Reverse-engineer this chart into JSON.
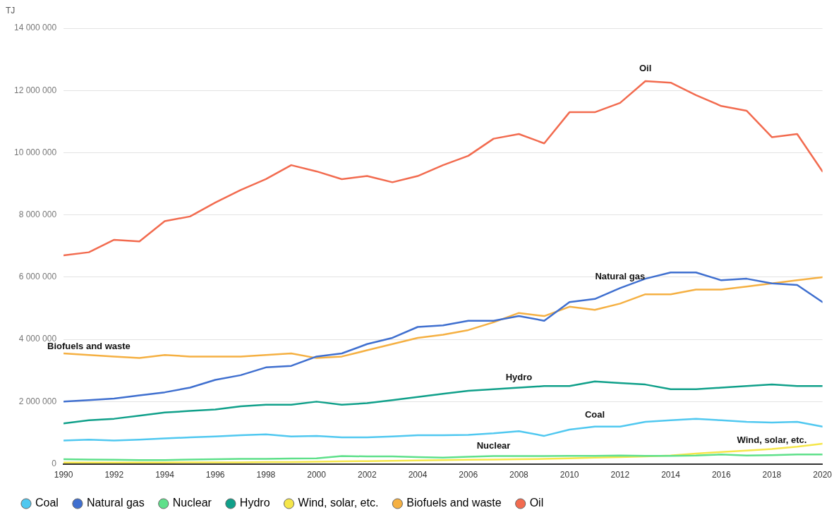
{
  "chart_data": {
    "type": "line",
    "ylabel": "TJ",
    "x": [
      1990,
      1991,
      1992,
      1993,
      1994,
      1995,
      1996,
      1997,
      1998,
      1999,
      2000,
      2001,
      2002,
      2003,
      2004,
      2005,
      2006,
      2007,
      2008,
      2009,
      2010,
      2011,
      2012,
      2013,
      2014,
      2015,
      2016,
      2017,
      2018,
      2019,
      2020
    ],
    "series": [
      {
        "name": "Coal",
        "color": "#50c8f0",
        "values": [
          750000,
          780000,
          750000,
          780000,
          820000,
          850000,
          880000,
          920000,
          950000,
          880000,
          900000,
          850000,
          850000,
          880000,
          920000,
          920000,
          930000,
          980000,
          1050000,
          900000,
          1100000,
          1200000,
          1200000,
          1350000,
          1400000,
          1450000,
          1400000,
          1350000,
          1330000,
          1350000,
          1200000
        ]
      },
      {
        "name": "Natural gas",
        "color": "#3f6fcf",
        "values": [
          2000000,
          2050000,
          2100000,
          2200000,
          2300000,
          2450000,
          2700000,
          2850000,
          3100000,
          3150000,
          3450000,
          3550000,
          3850000,
          4050000,
          4400000,
          4450000,
          4600000,
          4600000,
          4750000,
          4600000,
          5200000,
          5300000,
          5650000,
          5950000,
          6150000,
          6150000,
          5900000,
          5950000,
          5800000,
          5750000,
          5200000
        ]
      },
      {
        "name": "Nuclear",
        "color": "#5ee08a",
        "values": [
          150000,
          140000,
          130000,
          120000,
          120000,
          140000,
          150000,
          160000,
          160000,
          170000,
          180000,
          250000,
          240000,
          240000,
          220000,
          200000,
          230000,
          250000,
          250000,
          250000,
          260000,
          260000,
          270000,
          260000,
          260000,
          270000,
          300000,
          270000,
          280000,
          300000,
          300000
        ]
      },
      {
        "name": "Hydro",
        "color": "#10a08a",
        "values": [
          1300000,
          1400000,
          1450000,
          1550000,
          1650000,
          1700000,
          1750000,
          1850000,
          1900000,
          1900000,
          2000000,
          1900000,
          1950000,
          2050000,
          2150000,
          2250000,
          2350000,
          2400000,
          2450000,
          2500000,
          2500000,
          2650000,
          2600000,
          2550000,
          2400000,
          2400000,
          2450000,
          2500000,
          2550000,
          2500000,
          2500000
        ]
      },
      {
        "name": "Wind, solar, etc.",
        "color": "#f5e64a",
        "values": [
          40000,
          40000,
          40000,
          40000,
          40000,
          50000,
          50000,
          50000,
          60000,
          60000,
          70000,
          80000,
          90000,
          100000,
          110000,
          120000,
          130000,
          140000,
          150000,
          160000,
          180000,
          200000,
          220000,
          240000,
          270000,
          330000,
          380000,
          430000,
          480000,
          550000,
          650000
        ]
      },
      {
        "name": "Biofuels and waste",
        "color": "#f5b042",
        "values": [
          3550000,
          3500000,
          3450000,
          3400000,
          3500000,
          3450000,
          3450000,
          3450000,
          3500000,
          3550000,
          3400000,
          3450000,
          3650000,
          3850000,
          4050000,
          4150000,
          4300000,
          4550000,
          4850000,
          4750000,
          5050000,
          4950000,
          5150000,
          5450000,
          5450000,
          5600000,
          5600000,
          5700000,
          5800000,
          5900000,
          6000000
        ]
      },
      {
        "name": "Oil",
        "color": "#f26b4f",
        "values": [
          6700000,
          6800000,
          7200000,
          7150000,
          7800000,
          7950000,
          8400000,
          8800000,
          9150000,
          9600000,
          9400000,
          9150000,
          9250000,
          9050000,
          9250000,
          9600000,
          9900000,
          10450000,
          10600000,
          10300000,
          11300000,
          11300000,
          11600000,
          12300000,
          12250000,
          11850000,
          11500000,
          11350000,
          10500000,
          10600000,
          9400000
        ]
      }
    ],
    "xlim": [
      1990,
      2020
    ],
    "xticks": [
      1990,
      1992,
      1994,
      1996,
      1998,
      2000,
      2002,
      2004,
      2006,
      2008,
      2010,
      2012,
      2014,
      2016,
      2018,
      2020
    ],
    "ylim": [
      0,
      14000000
    ],
    "yticks": [
      0,
      {
        "value": 2000000,
        "label": "2 000 000"
      },
      {
        "value": 4000000,
        "label": "4 000 000"
      },
      {
        "value": 6000000,
        "label": "6 000 000"
      },
      {
        "value": 8000000,
        "label": "8 000 000"
      },
      {
        "value": 10000000,
        "label": "10 000 000"
      },
      {
        "value": 12000000,
        "label": "12 000 000"
      },
      {
        "value": 14000000,
        "label": "14 000 000"
      }
    ],
    "grid": "y",
    "legend": "bottom",
    "marker": "none",
    "line_style": "solid"
  }
}
